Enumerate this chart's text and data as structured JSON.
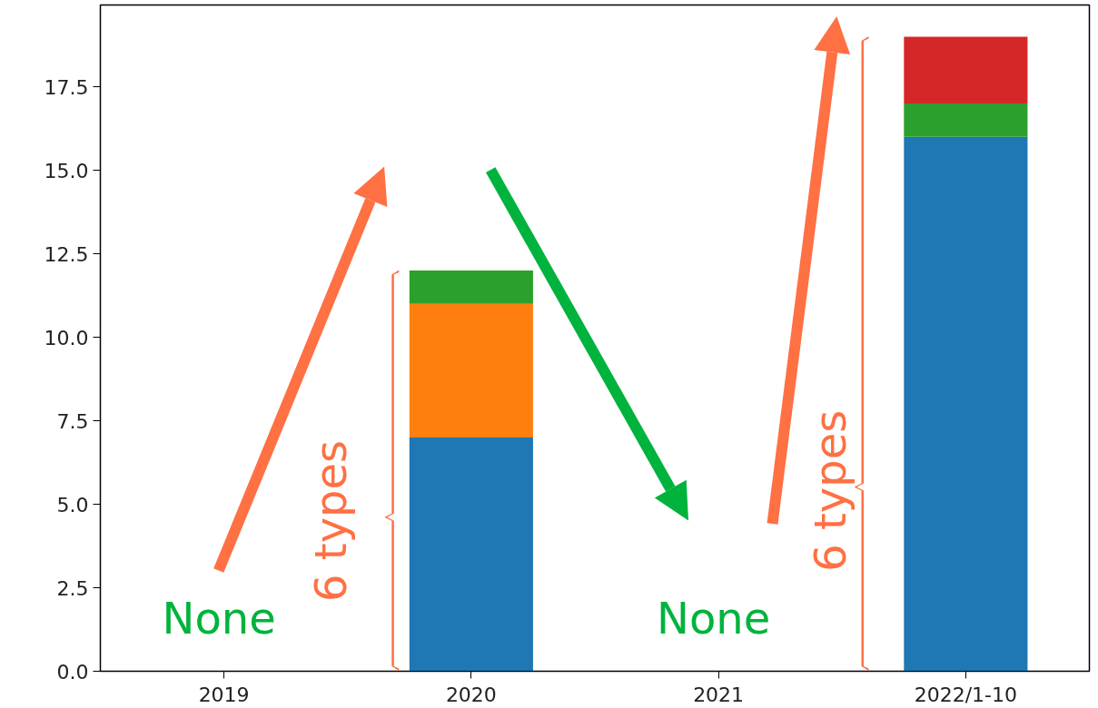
{
  "chart_data": {
    "type": "bar",
    "stacked": true,
    "categories": [
      "2019",
      "2020",
      "2021",
      "2022/1-10"
    ],
    "series": [
      {
        "color": "#1f77b4",
        "values": [
          null,
          7,
          null,
          16
        ]
      },
      {
        "color": "#ff7f0e",
        "values": [
          null,
          4,
          null,
          null
        ]
      },
      {
        "color": "#2ca02c",
        "values": [
          null,
          1,
          null,
          1
        ]
      },
      {
        "color": "#d62728",
        "values": [
          null,
          null,
          null,
          2
        ]
      }
    ],
    "ylim": [
      0,
      19.95
    ],
    "yticks": [
      {
        "value": 0,
        "label": "0.0"
      },
      {
        "value": 2.5,
        "label": "2.5"
      },
      {
        "value": 5,
        "label": "5.0"
      },
      {
        "value": 7.5,
        "label": "7.5"
      },
      {
        "value": 10,
        "label": "10.0"
      },
      {
        "value": 12.5,
        "label": "12.5"
      },
      {
        "value": 15,
        "label": "15.0"
      },
      {
        "value": 17.5,
        "label": "17.5"
      }
    ],
    "grid": false,
    "annotations": [
      "None",
      "6 types",
      "None",
      "6 types"
    ]
  }
}
